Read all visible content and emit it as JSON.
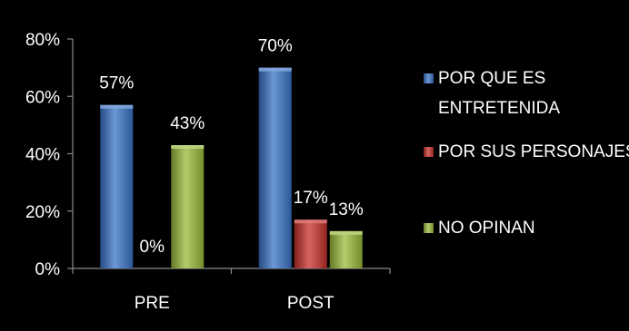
{
  "chart_data": {
    "type": "bar",
    "categories": [
      "PRE",
      "POST"
    ],
    "series": [
      {
        "name": "POR QUE ES ENTRETENIDA",
        "values": [
          57,
          70
        ],
        "labels": [
          "57%",
          "70%"
        ],
        "color": "#3b74c8"
      },
      {
        "name": "POR SUS PERSONAJES",
        "values": [
          0,
          17
        ],
        "labels": [
          "0%",
          "17%"
        ],
        "color": "#c8302c"
      },
      {
        "name": "NO OPINAN",
        "values": [
          43,
          13
        ],
        "labels": [
          "43%",
          "13%"
        ],
        "color": "#9bbb3a"
      }
    ],
    "ylim": [
      0,
      80
    ],
    "yticks": [
      0,
      20,
      40,
      60,
      80
    ],
    "ytick_labels": [
      "0%",
      "20%",
      "40%",
      "60%",
      "80%"
    ],
    "legend_lines": [
      [
        "POR QUE ES",
        "ENTRETENIDA"
      ],
      [
        "POR SUS PERSONAJES"
      ],
      [
        "NO OPINAN"
      ]
    ],
    "legend_position": "right",
    "grid": false,
    "background": "#000000",
    "text_color": "#ffffff"
  }
}
